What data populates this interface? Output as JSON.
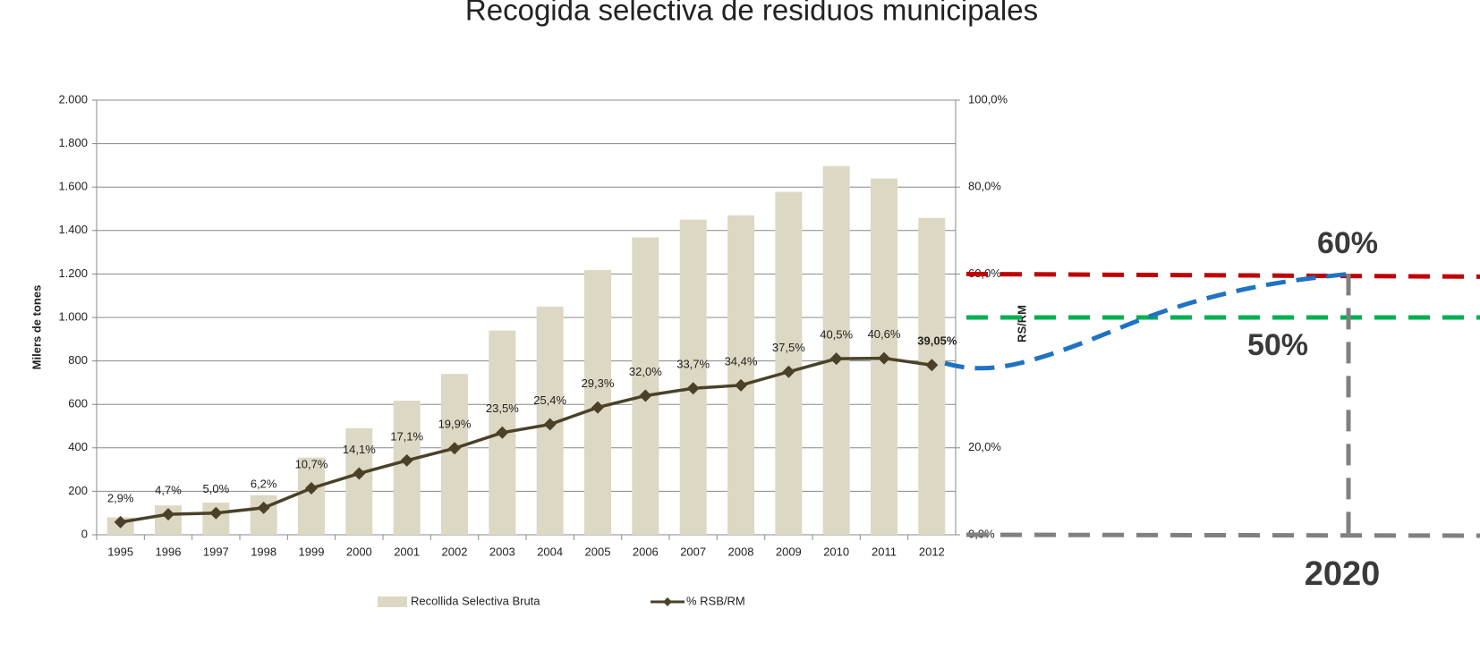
{
  "chart_data": {
    "type": "bar_line",
    "title": "Recogida selectiva de residuos municipales",
    "ylabel": "Milers de tones",
    "y2label": "RS/RM",
    "categories": [
      "1995",
      "1996",
      "1997",
      "1998",
      "1999",
      "2000",
      "2001",
      "2002",
      "2003",
      "2004",
      "2005",
      "2006",
      "2007",
      "2008",
      "2009",
      "2010",
      "2011",
      "2012"
    ],
    "series": [
      {
        "name": "Recollida Selectiva Bruta",
        "type": "bar",
        "color": "#ddd8c3",
        "axis": "y",
        "values": [
          80,
          135,
          148,
          182,
          355,
          490,
          617,
          740,
          940,
          1050,
          1218,
          1368,
          1450,
          1470,
          1578,
          1697,
          1640,
          1458
        ]
      },
      {
        "name": "% RSB/RM",
        "type": "line",
        "color": "#4a4128",
        "axis": "y2",
        "values": [
          2.9,
          4.7,
          5.0,
          6.2,
          10.7,
          14.1,
          17.1,
          19.9,
          23.5,
          25.4,
          29.3,
          32.0,
          33.7,
          34.4,
          37.5,
          40.5,
          40.6,
          39.05
        ],
        "value_labels": [
          "2,9%",
          "4,7%",
          "5,0%",
          "6,2%",
          "10,7%",
          "14,1%",
          "17,1%",
          "19,9%",
          "23,5%",
          "25,4%",
          "29,3%",
          "32,0%",
          "33,7%",
          "34,4%",
          "37,5%",
          "40,5%",
          "40,6%",
          "39,05%"
        ]
      }
    ],
    "ylim": [
      0,
      2000
    ],
    "yticks": [
      0,
      200,
      400,
      600,
      800,
      {
        "value": 1000,
        "label": "1.000"
      },
      {
        "value": 1200,
        "label": "1.200"
      },
      {
        "value": 1400,
        "label": "1.400"
      },
      {
        "value": 1600,
        "label": "1.600"
      },
      {
        "value": 1800,
        "label": "1.800"
      },
      {
        "value": 2000,
        "label": "2.000"
      }
    ],
    "y2lim": [
      0,
      100
    ],
    "y2ticks": [
      {
        "value": 0,
        "label": "0,0%"
      },
      {
        "value": 20,
        "label": "20,0%"
      },
      {
        "value": 60,
        "label": "60,0%"
      },
      {
        "value": 80,
        "label": "80,0%"
      },
      {
        "value": 100,
        "label": "100,0%"
      }
    ],
    "grid": true,
    "targets": [
      {
        "label": "60%",
        "value": 60,
        "color": "#c00000"
      },
      {
        "label": "50%",
        "value": 50,
        "color": "#00b050"
      }
    ],
    "target_year": "2020",
    "projection_color": "#1f72c4"
  }
}
